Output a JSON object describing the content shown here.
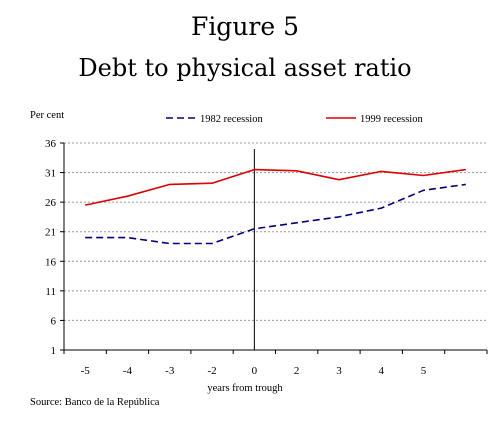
{
  "figure_label": "Figure 5",
  "chart_data": {
    "type": "line",
    "title": "Debt to physical asset ratio",
    "ylabel": "Per cent",
    "xlabel": "years from trough",
    "source": "Source: Banco de la República",
    "categories": [
      "-5",
      "-4",
      "-3",
      "-2",
      "0",
      "2",
      "3",
      "4",
      "5",
      ""
    ],
    "x_tick_labels": [
      "-5",
      "-4",
      "-3",
      "-2",
      "0",
      "2",
      "3",
      "4",
      "5"
    ],
    "y_ticks": [
      1,
      6,
      11,
      16,
      21,
      26,
      31,
      36
    ],
    "ylim": [
      1,
      36
    ],
    "grid": true,
    "legend_position": "top",
    "trough_marker_index": 4,
    "series": [
      {
        "name": "1982 recession",
        "color": "#000080",
        "style": "dashed",
        "values": [
          20.0,
          20.0,
          19.0,
          19.0,
          21.5,
          22.5,
          23.5,
          25.0,
          28.0,
          29.0
        ]
      },
      {
        "name": "1999 recession",
        "color": "#e00000",
        "style": "solid",
        "values": [
          25.5,
          27.0,
          29.0,
          29.2,
          31.5,
          31.3,
          29.8,
          31.2,
          30.5,
          31.5
        ]
      }
    ]
  }
}
